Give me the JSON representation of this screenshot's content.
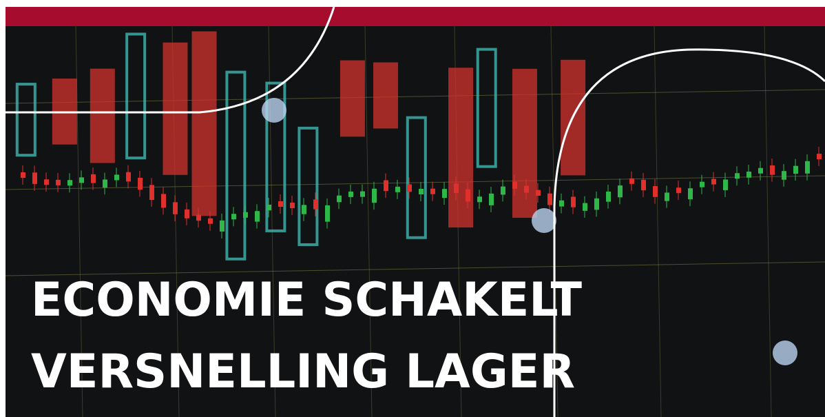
{
  "headline": {
    "lines": [
      "ECONOMIE SCHAKELT",
      "VERSNELLING LAGER"
    ]
  }
}
